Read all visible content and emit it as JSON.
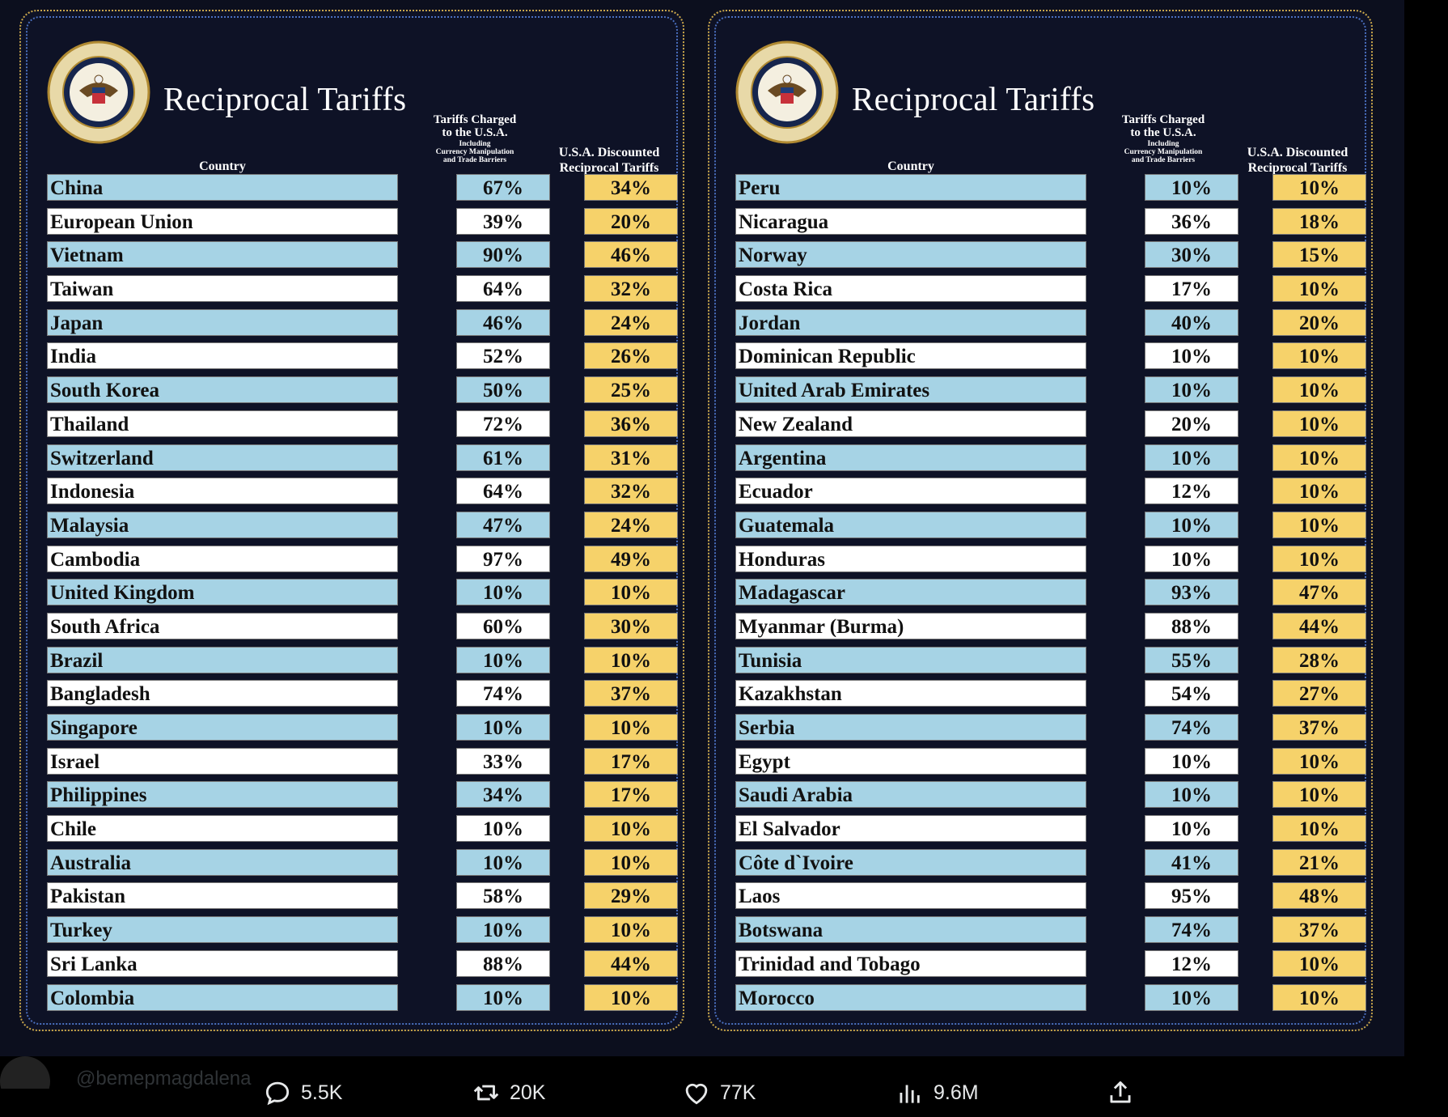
{
  "left_panel": {
    "title": "Reciprocal Tariffs",
    "seal_text": "SEAL OF THE PRESIDENT OF THE UNITED STATES",
    "headers": {
      "country": "Country",
      "charged_line1": "Tariffs Charged",
      "charged_line2": "to the U.S.A.",
      "charged_line3": "Including",
      "charged_line4": "Currency Manipulation",
      "charged_line5": "and Trade Barriers",
      "discount_line1": "U.S.A. Discounted",
      "discount_line2": "Reciprocal Tariffs"
    },
    "rows": [
      {
        "country": "China",
        "charged": "67%",
        "discounted": "34%"
      },
      {
        "country": "European Union",
        "charged": "39%",
        "discounted": "20%"
      },
      {
        "country": "Vietnam",
        "charged": "90%",
        "discounted": "46%"
      },
      {
        "country": "Taiwan",
        "charged": "64%",
        "discounted": "32%"
      },
      {
        "country": "Japan",
        "charged": "46%",
        "discounted": "24%"
      },
      {
        "country": "India",
        "charged": "52%",
        "discounted": "26%"
      },
      {
        "country": "South Korea",
        "charged": "50%",
        "discounted": "25%"
      },
      {
        "country": "Thailand",
        "charged": "72%",
        "discounted": "36%"
      },
      {
        "country": "Switzerland",
        "charged": "61%",
        "discounted": "31%"
      },
      {
        "country": "Indonesia",
        "charged": "64%",
        "discounted": "32%"
      },
      {
        "country": "Malaysia",
        "charged": "47%",
        "discounted": "24%"
      },
      {
        "country": "Cambodia",
        "charged": "97%",
        "discounted": "49%"
      },
      {
        "country": "United Kingdom",
        "charged": "10%",
        "discounted": "10%"
      },
      {
        "country": "South Africa",
        "charged": "60%",
        "discounted": "30%"
      },
      {
        "country": "Brazil",
        "charged": "10%",
        "discounted": "10%"
      },
      {
        "country": "Bangladesh",
        "charged": "74%",
        "discounted": "37%"
      },
      {
        "country": "Singapore",
        "charged": "10%",
        "discounted": "10%"
      },
      {
        "country": "Israel",
        "charged": "33%",
        "discounted": "17%"
      },
      {
        "country": "Philippines",
        "charged": "34%",
        "discounted": "17%"
      },
      {
        "country": "Chile",
        "charged": "10%",
        "discounted": "10%"
      },
      {
        "country": "Australia",
        "charged": "10%",
        "discounted": "10%"
      },
      {
        "country": "Pakistan",
        "charged": "58%",
        "discounted": "29%"
      },
      {
        "country": "Turkey",
        "charged": "10%",
        "discounted": "10%"
      },
      {
        "country": "Sri Lanka",
        "charged": "88%",
        "discounted": "44%"
      },
      {
        "country": "Colombia",
        "charged": "10%",
        "discounted": "10%"
      }
    ]
  },
  "right_panel": {
    "title": "Reciprocal Tariffs",
    "seal_text": "SEAL OF THE PRESIDENT OF THE UNITED STATES",
    "headers": {
      "country": "Country",
      "charged_line1": "Tariffs Charged",
      "charged_line2": "to the U.S.A.",
      "charged_line3": "Including",
      "charged_line4": "Currency Manipulation",
      "charged_line5": "and Trade Barriers",
      "discount_line1": "U.S.A. Discounted",
      "discount_line2": "Reciprocal Tariffs"
    },
    "rows": [
      {
        "country": "Peru",
        "charged": "10%",
        "discounted": "10%"
      },
      {
        "country": "Nicaragua",
        "charged": "36%",
        "discounted": "18%"
      },
      {
        "country": "Norway",
        "charged": "30%",
        "discounted": "15%"
      },
      {
        "country": "Costa Rica",
        "charged": "17%",
        "discounted": "10%"
      },
      {
        "country": "Jordan",
        "charged": "40%",
        "discounted": "20%"
      },
      {
        "country": "Dominican Republic",
        "charged": "10%",
        "discounted": "10%"
      },
      {
        "country": "United Arab Emirates",
        "charged": "10%",
        "discounted": "10%"
      },
      {
        "country": "New Zealand",
        "charged": "20%",
        "discounted": "10%"
      },
      {
        "country": "Argentina",
        "charged": "10%",
        "discounted": "10%"
      },
      {
        "country": "Ecuador",
        "charged": "12%",
        "discounted": "10%"
      },
      {
        "country": "Guatemala",
        "charged": "10%",
        "discounted": "10%"
      },
      {
        "country": "Honduras",
        "charged": "10%",
        "discounted": "10%"
      },
      {
        "country": "Madagascar",
        "charged": "93%",
        "discounted": "47%"
      },
      {
        "country": "Myanmar (Burma)",
        "charged": "88%",
        "discounted": "44%"
      },
      {
        "country": "Tunisia",
        "charged": "55%",
        "discounted": "28%"
      },
      {
        "country": "Kazakhstan",
        "charged": "54%",
        "discounted": "27%"
      },
      {
        "country": "Serbia",
        "charged": "74%",
        "discounted": "37%"
      },
      {
        "country": "Egypt",
        "charged": "10%",
        "discounted": "10%"
      },
      {
        "country": "Saudi Arabia",
        "charged": "10%",
        "discounted": "10%"
      },
      {
        "country": "El Salvador",
        "charged": "10%",
        "discounted": "10%"
      },
      {
        "country": "Côte d`Ivoire",
        "charged": "41%",
        "discounted": "21%"
      },
      {
        "country": "Laos",
        "charged": "95%",
        "discounted": "48%"
      },
      {
        "country": "Botswana",
        "charged": "74%",
        "discounted": "37%"
      },
      {
        "country": "Trinidad and Tobago",
        "charged": "12%",
        "discounted": "10%"
      },
      {
        "country": "Morocco",
        "charged": "10%",
        "discounted": "10%"
      }
    ]
  },
  "faded_post": {
    "handle": "@bemepmagdalena"
  },
  "actions": {
    "replies": "5.5K",
    "reposts": "20K",
    "likes": "77K",
    "views": "9.6M"
  },
  "colors": {
    "row_blue": "#a6d3e5",
    "row_white": "#ffffff",
    "discount_yellow": "#f6d26a",
    "panel_bg": "#0e1226",
    "gold_border": "#c9a64a"
  }
}
